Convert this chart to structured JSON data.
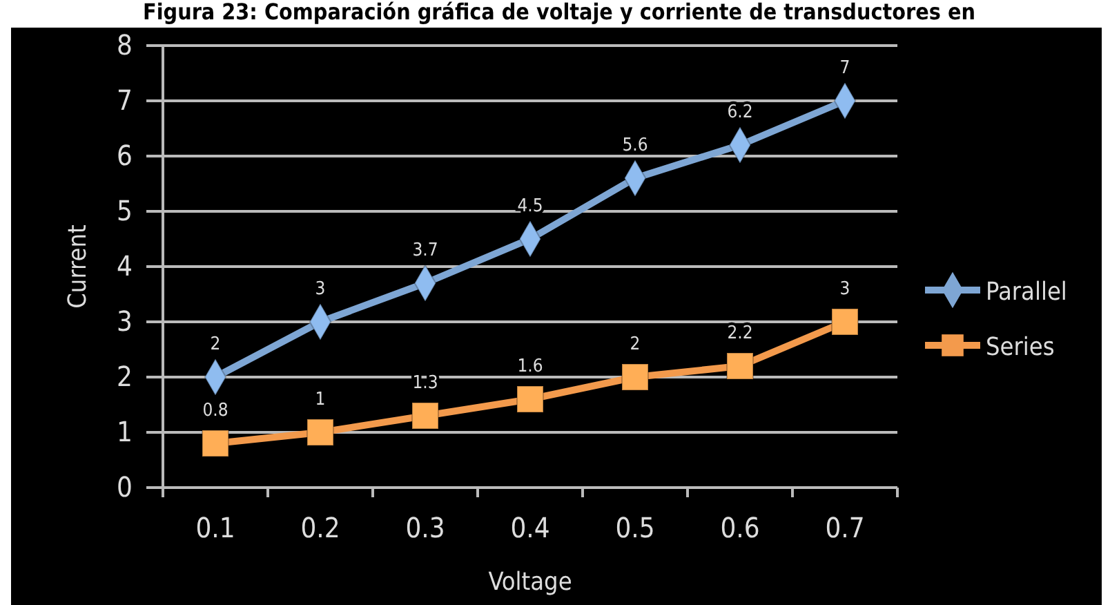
{
  "chart_data": {
    "type": "line",
    "title": "Figura 23: Comparación gráfica de voltaje y corriente de transductores en",
    "xlabel": "Voltage",
    "ylabel": "Current",
    "categories": [
      "0.1",
      "0.2",
      "0.3",
      "0.4",
      "0.5",
      "0.6",
      "0.7"
    ],
    "series": [
      {
        "name": "Parallel",
        "color": "#7ea6d4",
        "marker": "diamond",
        "values": [
          2,
          3,
          3.7,
          4.5,
          5.6,
          6.2,
          7
        ]
      },
      {
        "name": "Series",
        "color": "#f39a4c",
        "marker": "square",
        "values": [
          0.8,
          1,
          1.3,
          1.6,
          2,
          2.2,
          3
        ]
      }
    ],
    "ylim": [
      0,
      8
    ],
    "yticks": [
      0,
      1,
      2,
      3,
      4,
      5,
      6,
      7,
      8
    ],
    "grid": "y",
    "legend": "right",
    "data_labels": true
  }
}
